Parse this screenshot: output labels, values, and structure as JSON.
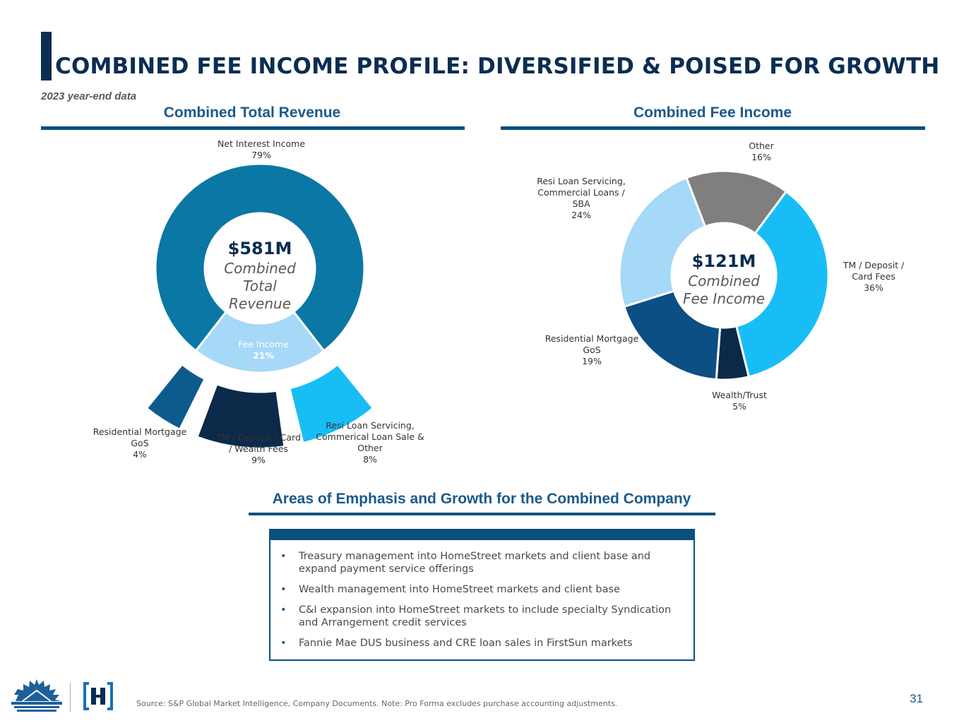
{
  "page": {
    "title": "COMBINED FEE INCOME PROFILE: DIVERSIFIED & POISED FOR GROWTH",
    "subtitle": "2023 year-end data",
    "page_number": "31",
    "source": "Source: S&P Global Market Intelligence, Company Documents. Note: Pro Forma excludes purchase accounting adjustments."
  },
  "left": {
    "heading": "Combined Total Revenue",
    "center_amount": "$581M",
    "center_label": "Combined\nTotal\nRevenue",
    "labels": {
      "nii": "Net Interest Income\n79%",
      "fee_name": "Fee Income",
      "fee_pct": "21%",
      "resi_gos": "Residential Mortgage\nGoS\n4%",
      "tm": "TM / Deposit / Card\n/ Wealth Fees\n9%",
      "resi_servicing": "Resi Loan Servicing,\nCommerical Loan Sale &\nOther\n8%"
    }
  },
  "right": {
    "heading": "Combined Fee Income",
    "center_amount": "$121M",
    "center_label": "Combined\nFee Income",
    "labels": {
      "other": "Other\n16%",
      "tm": "TM / Deposit /\nCard Fees\n36%",
      "wealth": "Wealth/Trust\n5%",
      "resi_gos": "Residential Mortgage\nGoS\n19%",
      "resi_servicing": "Resi Loan Servicing,\nCommercial Loans /\nSBA\n24%"
    }
  },
  "emphasis": {
    "heading": "Areas of Emphasis and Growth for the Combined Company",
    "bullet_char": "•",
    "bullets": [
      "Treasury management into HomeStreet markets and client base and expand payment service offerings",
      "Wealth management into HomeStreet markets and client base",
      "C&I expansion into HomeStreet markets to include specialty Syndication and Arrangement credit services",
      "Fannie Mae DUS business and CRE loan sales in FirstSun markets"
    ]
  },
  "chart_data": [
    {
      "type": "pie",
      "title": "Combined Total Revenue",
      "center_text": "$581M Combined Total Revenue",
      "slices": [
        {
          "name": "Net Interest Income",
          "value": 79,
          "color": "#0b77a4"
        },
        {
          "name": "Fee Income",
          "value": 21,
          "color": "#a6d8f7"
        }
      ],
      "breakdown_of": "Fee Income",
      "breakdown": [
        {
          "name": "Residential Mortgage GoS",
          "value": 4,
          "color": "#0c5a8e"
        },
        {
          "name": "TM / Deposit / Card / Wealth Fees",
          "value": 9,
          "color": "#0b2a4a"
        },
        {
          "name": "Resi Loan Servicing, Commerical Loan Sale & Other",
          "value": 8,
          "color": "#19bdf6"
        }
      ]
    },
    {
      "type": "pie",
      "title": "Combined Fee Income",
      "center_text": "$121M Combined Fee Income",
      "slices": [
        {
          "name": "Other",
          "value": 16,
          "color": "#7f7f7f"
        },
        {
          "name": "TM / Deposit / Card Fees",
          "value": 36,
          "color": "#19bdf6"
        },
        {
          "name": "Wealth/Trust",
          "value": 5,
          "color": "#0b2a4a"
        },
        {
          "name": "Residential Mortgage GoS",
          "value": 19,
          "color": "#0c4f85"
        },
        {
          "name": "Resi Loan Servicing, Commercial Loans / SBA",
          "value": 24,
          "color": "#a6d8f7"
        }
      ]
    }
  ]
}
